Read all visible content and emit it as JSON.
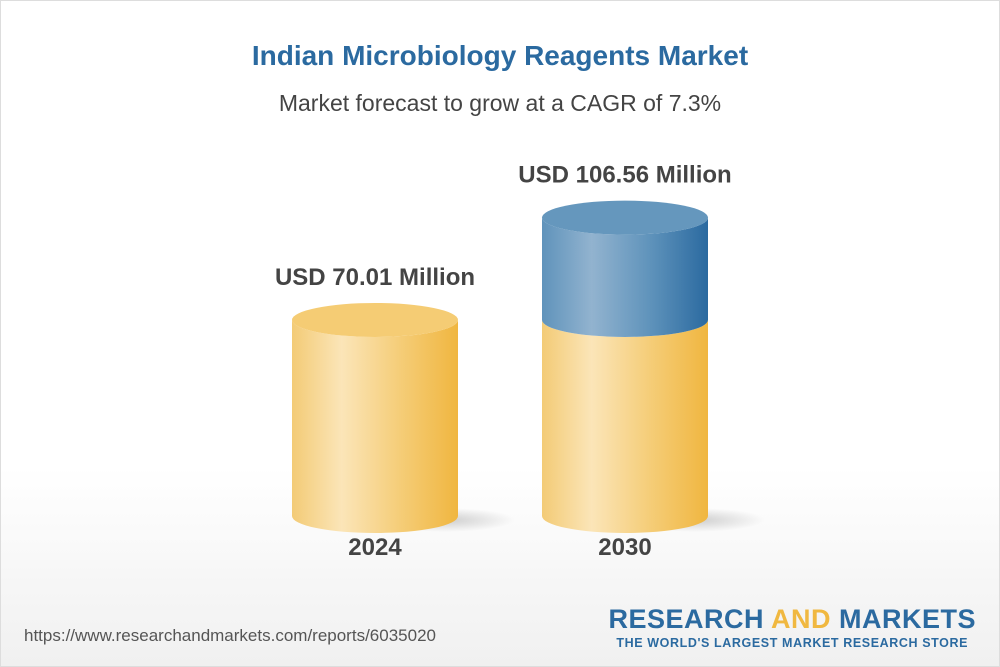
{
  "chart_data": {
    "type": "bar",
    "title": "Indian Microbiology Reagents Market",
    "subtitle": "Market forecast to grow at a CAGR of 7.3%",
    "categories": [
      "2024",
      "2030"
    ],
    "values": [
      70.01,
      106.56
    ],
    "data_labels": [
      "USD 70.01 Million",
      "USD 106.56 Million"
    ],
    "unit": "USD Million",
    "style": "3d-cylinder",
    "colors": {
      "base": "#f3c35a",
      "growth": "#2b6aa0"
    },
    "grid": false
  },
  "footer": {
    "url": "https://www.researchandmarkets.com/reports/6035020",
    "logo_word1": "RESEARCH",
    "logo_word2": "AND",
    "logo_word3": "MARKETS",
    "logo_tagline": "THE WORLD'S LARGEST MARKET RESEARCH STORE"
  }
}
